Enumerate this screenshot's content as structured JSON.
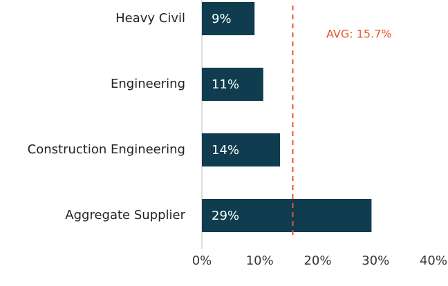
{
  "chart_data": {
    "type": "hbar",
    "categories": [
      "Heavy Civil",
      "Engineering",
      "Construction Engineering",
      "Aggregate Supplier"
    ],
    "values": [
      9.1,
      10.6,
      13.5,
      29.3
    ],
    "value_labels": [
      "9%",
      "11%",
      "14%",
      "29%"
    ],
    "color": "#0f3d4f",
    "xlim": [
      0,
      40
    ],
    "xticks": [
      {
        "value": 0,
        "label": "0%"
      },
      {
        "value": 10,
        "label": "10%"
      },
      {
        "value": 20,
        "label": "20%"
      },
      {
        "value": 30,
        "label": "30%"
      },
      {
        "value": 40,
        "label": "40%"
      }
    ],
    "average": {
      "value": 15.7,
      "label": "AVG: 15.7%",
      "color": "#e8552b"
    }
  }
}
